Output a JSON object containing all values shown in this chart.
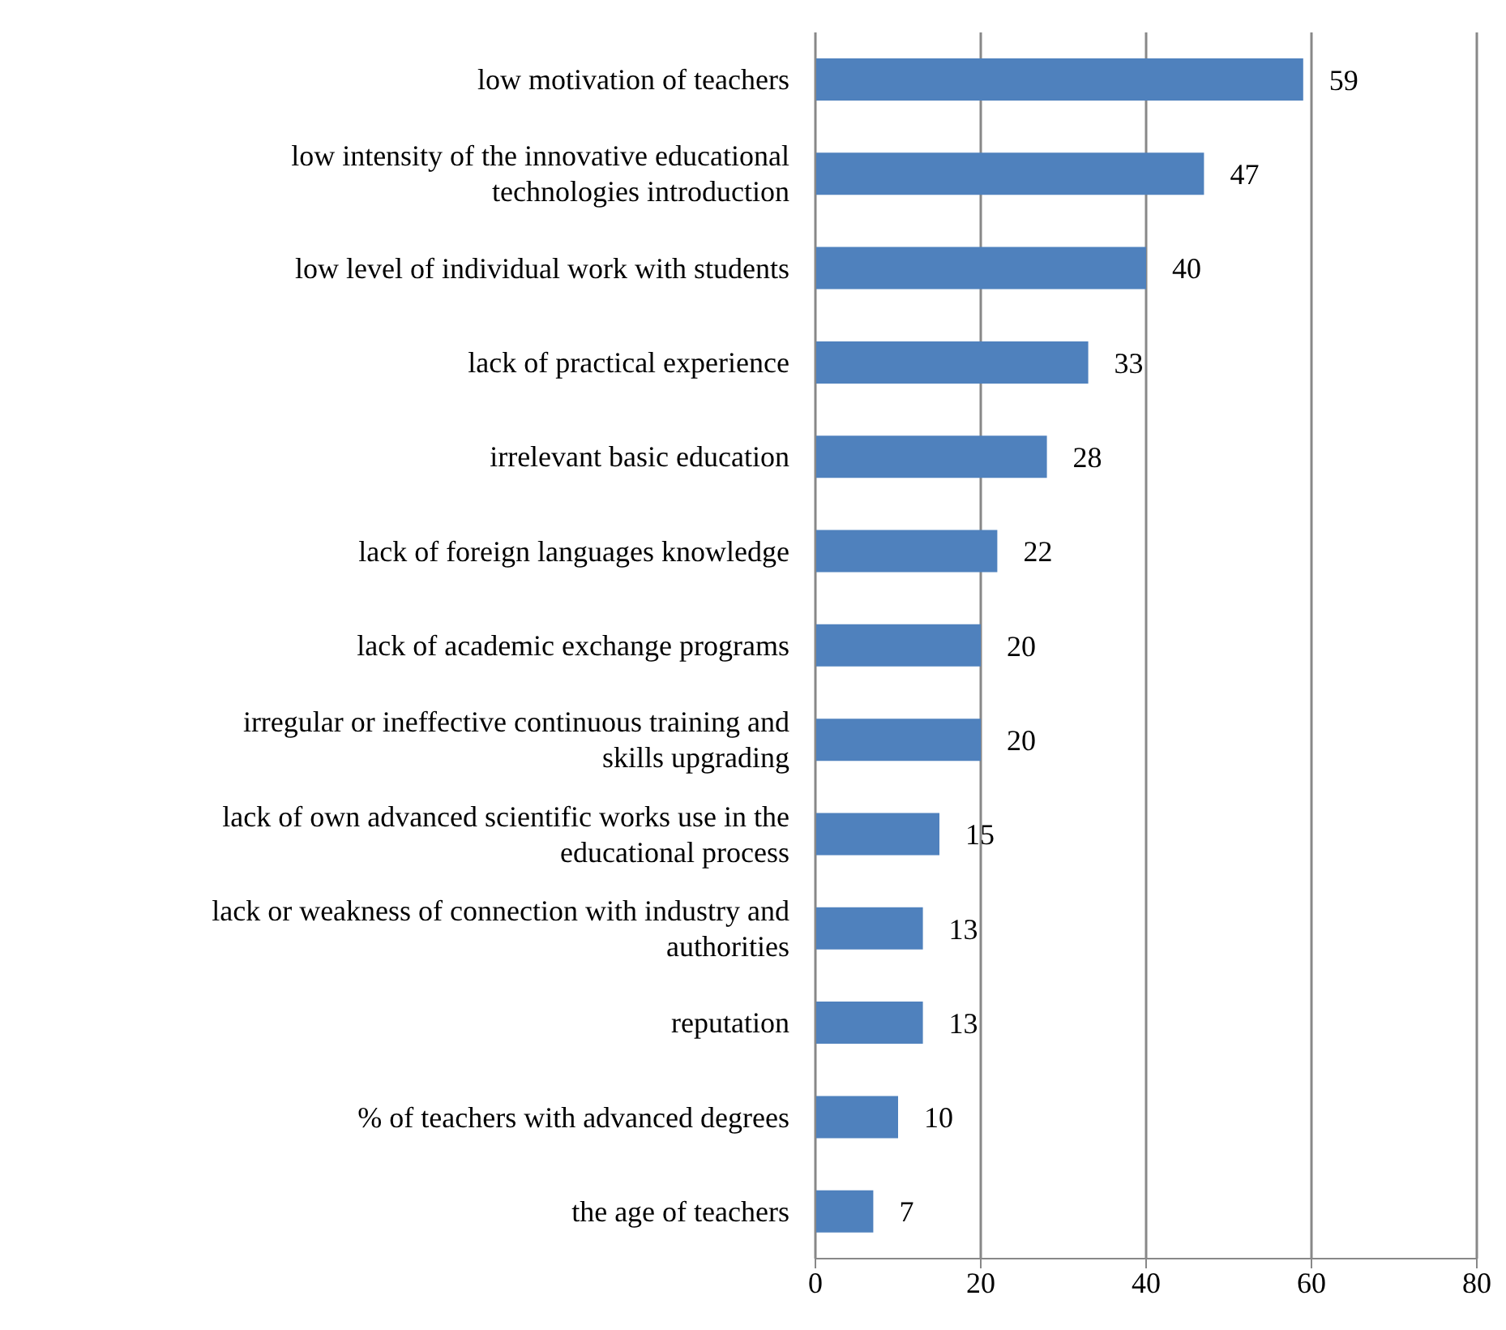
{
  "chart_data": {
    "type": "bar",
    "orientation": "horizontal",
    "categories": [
      "low motivation of teachers",
      "low intensity of the innovative educational technologies introduction",
      "low level of individual work with students",
      "lack of practical experience",
      "irrelevant basic education",
      "lack of foreign languages knowledge",
      "lack of academic exchange programs",
      "irregular or ineffective continuous training and skills upgrading",
      "lack of own advanced scientific works use in the educational process",
      "lack or weakness of connection with industry and authorities",
      "reputation",
      "% of teachers with advanced degrees",
      "the age of teachers"
    ],
    "values": [
      59,
      47,
      40,
      33,
      28,
      22,
      20,
      20,
      15,
      13,
      13,
      10,
      7
    ],
    "color": "#4f81bd",
    "xlim": [
      0,
      80
    ],
    "xticks": [
      0,
      20,
      40,
      60,
      80
    ],
    "grid": "x",
    "data_labels": true
  }
}
